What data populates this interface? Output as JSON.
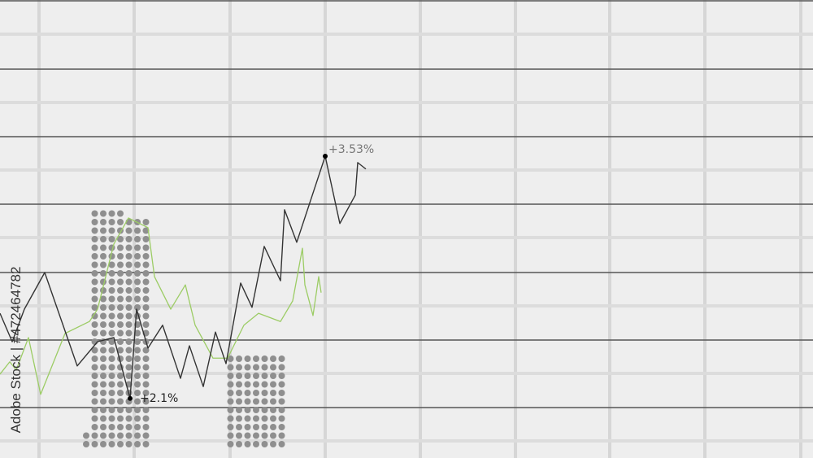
{
  "chart_data": {
    "type": "line",
    "title": "",
    "xlabel": "",
    "ylabel": "",
    "xlim": [
      0,
      100
    ],
    "ylim": [
      0,
      100
    ],
    "grid": true,
    "series": [
      {
        "color": "#333333",
        "points": [
          [
            0,
            31.6
          ],
          [
            1.5,
            25.4
          ],
          [
            3,
            32.5
          ],
          [
            5.5,
            40.5
          ],
          [
            9.5,
            20.1
          ],
          [
            12,
            25.4
          ],
          [
            14,
            26.3
          ],
          [
            16,
            13.0
          ],
          [
            16.8,
            32.5
          ],
          [
            18.2,
            24.0
          ],
          [
            20,
            29.0
          ],
          [
            22.2,
            17.4
          ],
          [
            23.3,
            24.5
          ],
          [
            25,
            15.6
          ],
          [
            26.5,
            27.5
          ],
          [
            27.8,
            20.6
          ],
          [
            29.6,
            38.2
          ],
          [
            31,
            32.9
          ],
          [
            32.5,
            46.2
          ],
          [
            34.5,
            38.7
          ],
          [
            35,
            54.2
          ],
          [
            36.5,
            47.1
          ],
          [
            40,
            65.9
          ],
          [
            41.8,
            51.2
          ],
          [
            43.7,
            57.4
          ],
          [
            44,
            64.5
          ],
          [
            45,
            63.1
          ]
        ]
      },
      {
        "color": "#9ccc65",
        "points": [
          [
            0,
            18.3
          ],
          [
            1.2,
            21.0
          ],
          [
            2,
            19.2
          ],
          [
            3.5,
            26.3
          ],
          [
            5,
            13.9
          ],
          [
            8,
            27.2
          ],
          [
            11,
            29.8
          ],
          [
            12,
            32.5
          ],
          [
            14,
            46.7
          ],
          [
            15.8,
            52.4
          ],
          [
            18.2,
            50.3
          ],
          [
            19,
            39.6
          ],
          [
            21,
            32.5
          ],
          [
            22.8,
            37.8
          ],
          [
            24,
            29.0
          ],
          [
            26.2,
            21.8
          ],
          [
            28,
            21.8
          ],
          [
            30,
            29.0
          ],
          [
            31.8,
            31.6
          ],
          [
            34.5,
            29.8
          ],
          [
            36,
            34.3
          ],
          [
            37.2,
            45.8
          ],
          [
            37.5,
            37.8
          ],
          [
            38.5,
            31.1
          ],
          [
            39.2,
            39.6
          ],
          [
            39.5,
            36.1
          ]
        ]
      }
    ],
    "bars": [
      {
        "x": 14.8,
        "value": 54.7,
        "color": "#8f8f8f"
      },
      {
        "x": 31.5,
        "value": 23.3,
        "color": "#8f8f8f"
      }
    ],
    "annotations": [
      {
        "text": "+2.1%",
        "x": 16,
        "y": 13.0
      },
      {
        "text": "+3.53%",
        "x": 40,
        "y": 65.9
      }
    ]
  },
  "watermark": "Adobe Stock | #472464782"
}
